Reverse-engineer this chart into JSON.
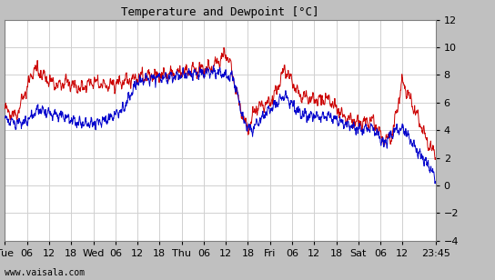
{
  "title": "Temperature and Dewpoint [°C]",
  "ylim": [
    -4,
    12
  ],
  "yticks": [
    -4,
    -2,
    0,
    2,
    4,
    6,
    8,
    10,
    12
  ],
  "fig_bg_color": "#c0c0c0",
  "plot_bg_color": "#ffffff",
  "grid_color": "#d0d0d0",
  "temp_color": "#cc0000",
  "dewp_color": "#0000cc",
  "watermark": "www.vaisala.com",
  "xtick_labels": [
    "Tue",
    "06",
    "12",
    "18",
    "Wed",
    "06",
    "12",
    "18",
    "Thu",
    "06",
    "12",
    "18",
    "Fri",
    "06",
    "12",
    "18",
    "Sat",
    "06",
    "12",
    "23:45"
  ],
  "xtick_positions": [
    0,
    6,
    12,
    18,
    24,
    30,
    36,
    42,
    48,
    54,
    60,
    66,
    72,
    78,
    84,
    90,
    96,
    102,
    108,
    117
  ],
  "total_hours": 117,
  "line_width": 0.7,
  "figsize": [
    5.44,
    3.08
  ],
  "dpi": 100
}
